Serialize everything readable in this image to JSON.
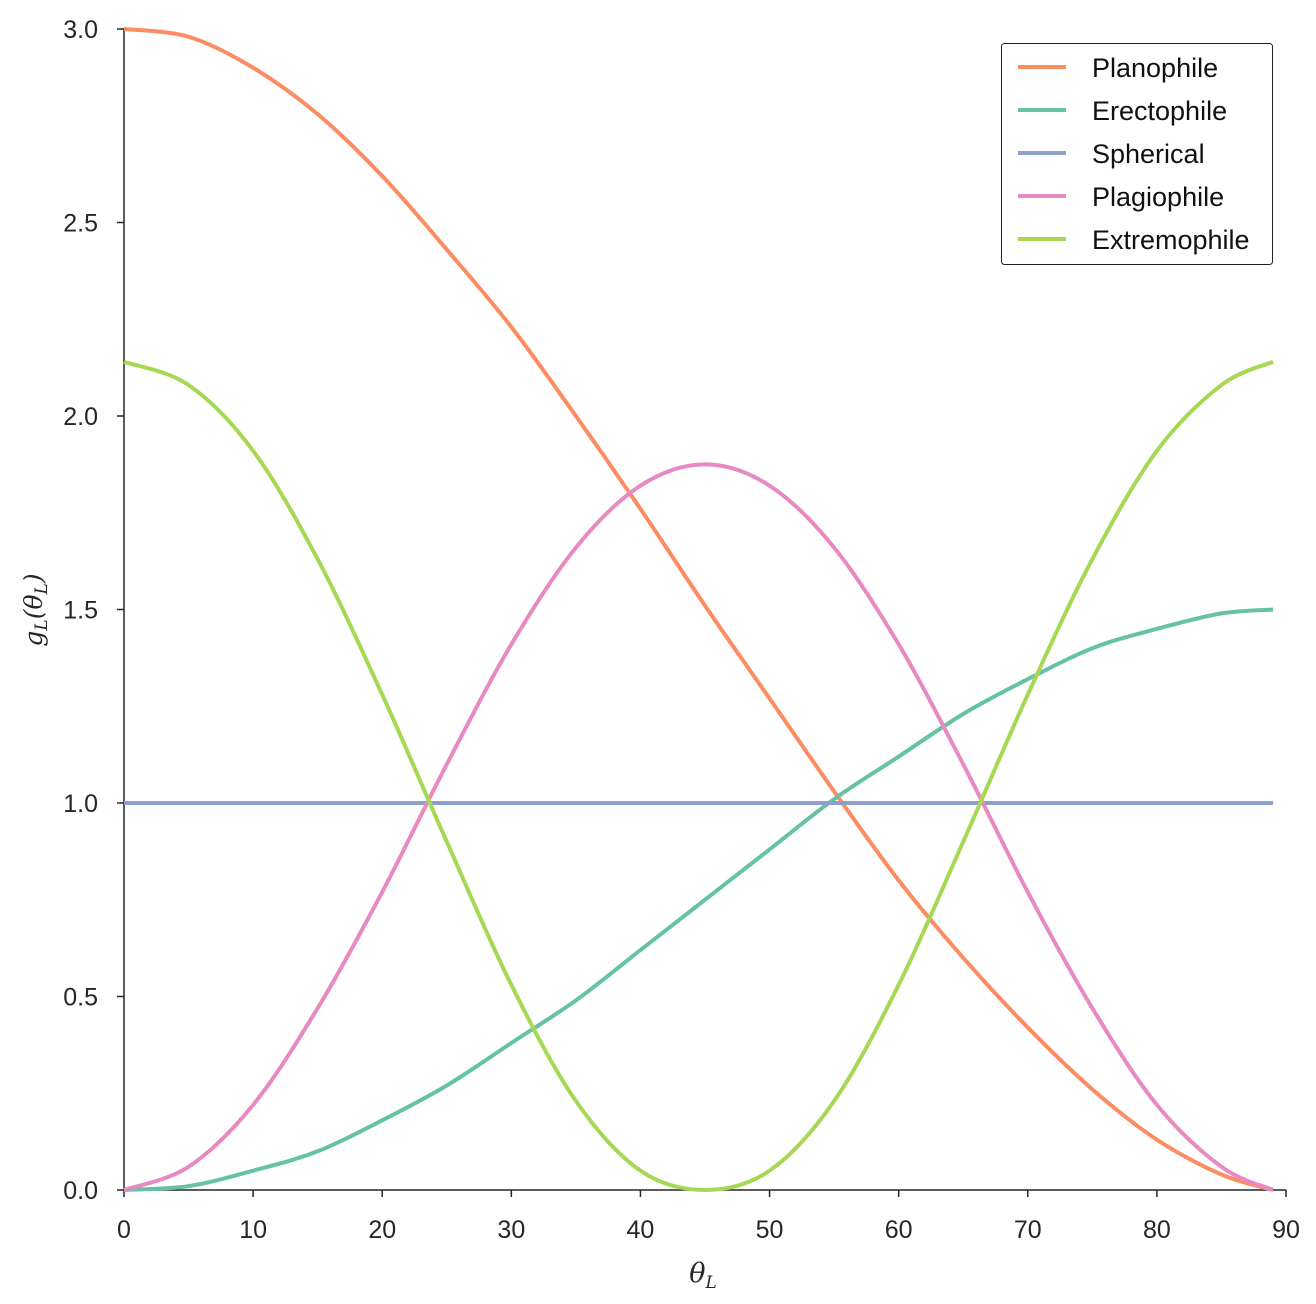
{
  "chart_data": {
    "type": "line",
    "title": "",
    "xlabel": {
      "base": "θ",
      "sub": "L"
    },
    "ylabel": {
      "g": "g",
      "g_sub": "L",
      "paren_open": "(",
      "theta": "θ",
      "theta_sub": "L",
      "paren_close": ")"
    },
    "xlim": [
      0,
      90
    ],
    "ylim": [
      0,
      3.0
    ],
    "xticks": [
      0,
      10,
      20,
      30,
      40,
      50,
      60,
      70,
      80,
      90
    ],
    "xtick_labels": [
      "0",
      "10",
      "20",
      "30",
      "40",
      "50",
      "60",
      "70",
      "80",
      "90"
    ],
    "yticks": [
      0,
      0.5,
      1.0,
      1.5,
      2.0,
      2.5,
      3.0
    ],
    "ytick_labels": [
      "0.0",
      "0.5",
      "1.0",
      "1.5",
      "2.0",
      "2.5",
      "3.0"
    ],
    "grid": false,
    "legend_position": "top-right",
    "x": [
      0,
      5,
      10,
      15,
      20,
      25,
      30,
      35,
      40,
      45,
      50,
      55,
      60,
      65,
      70,
      75,
      80,
      85,
      89
    ],
    "series": [
      {
        "name": "Planophile",
        "color": "#fc8d62",
        "values": [
          3.0,
          2.98,
          2.9,
          2.78,
          2.62,
          2.43,
          2.23,
          2.0,
          1.76,
          1.51,
          1.27,
          1.03,
          0.8,
          0.6,
          0.42,
          0.26,
          0.13,
          0.04,
          0.0
        ]
      },
      {
        "name": "Erectophile",
        "color": "#66c2a5",
        "values": [
          0.0,
          0.01,
          0.05,
          0.1,
          0.18,
          0.27,
          0.38,
          0.49,
          0.62,
          0.75,
          0.88,
          1.01,
          1.12,
          1.23,
          1.32,
          1.4,
          1.45,
          1.49,
          1.5
        ]
      },
      {
        "name": "Spherical",
        "color": "#8da0cb",
        "values": [
          1.0,
          1.0,
          1.0,
          1.0,
          1.0,
          1.0,
          1.0,
          1.0,
          1.0,
          1.0,
          1.0,
          1.0,
          1.0,
          1.0,
          1.0,
          1.0,
          1.0,
          1.0,
          1.0
        ]
      },
      {
        "name": "Plagiophile",
        "color": "#e78ac3",
        "values": [
          0.0,
          0.06,
          0.22,
          0.47,
          0.77,
          1.1,
          1.41,
          1.66,
          1.82,
          1.875,
          1.82,
          1.66,
          1.41,
          1.1,
          0.77,
          0.47,
          0.22,
          0.06,
          0.0
        ]
      },
      {
        "name": "Extremophile",
        "color": "#a6d854",
        "values": [
          2.14,
          2.08,
          1.91,
          1.63,
          1.28,
          0.9,
          0.53,
          0.23,
          0.05,
          0.0,
          0.05,
          0.23,
          0.53,
          0.9,
          1.28,
          1.63,
          1.91,
          2.08,
          2.14
        ]
      }
    ]
  }
}
